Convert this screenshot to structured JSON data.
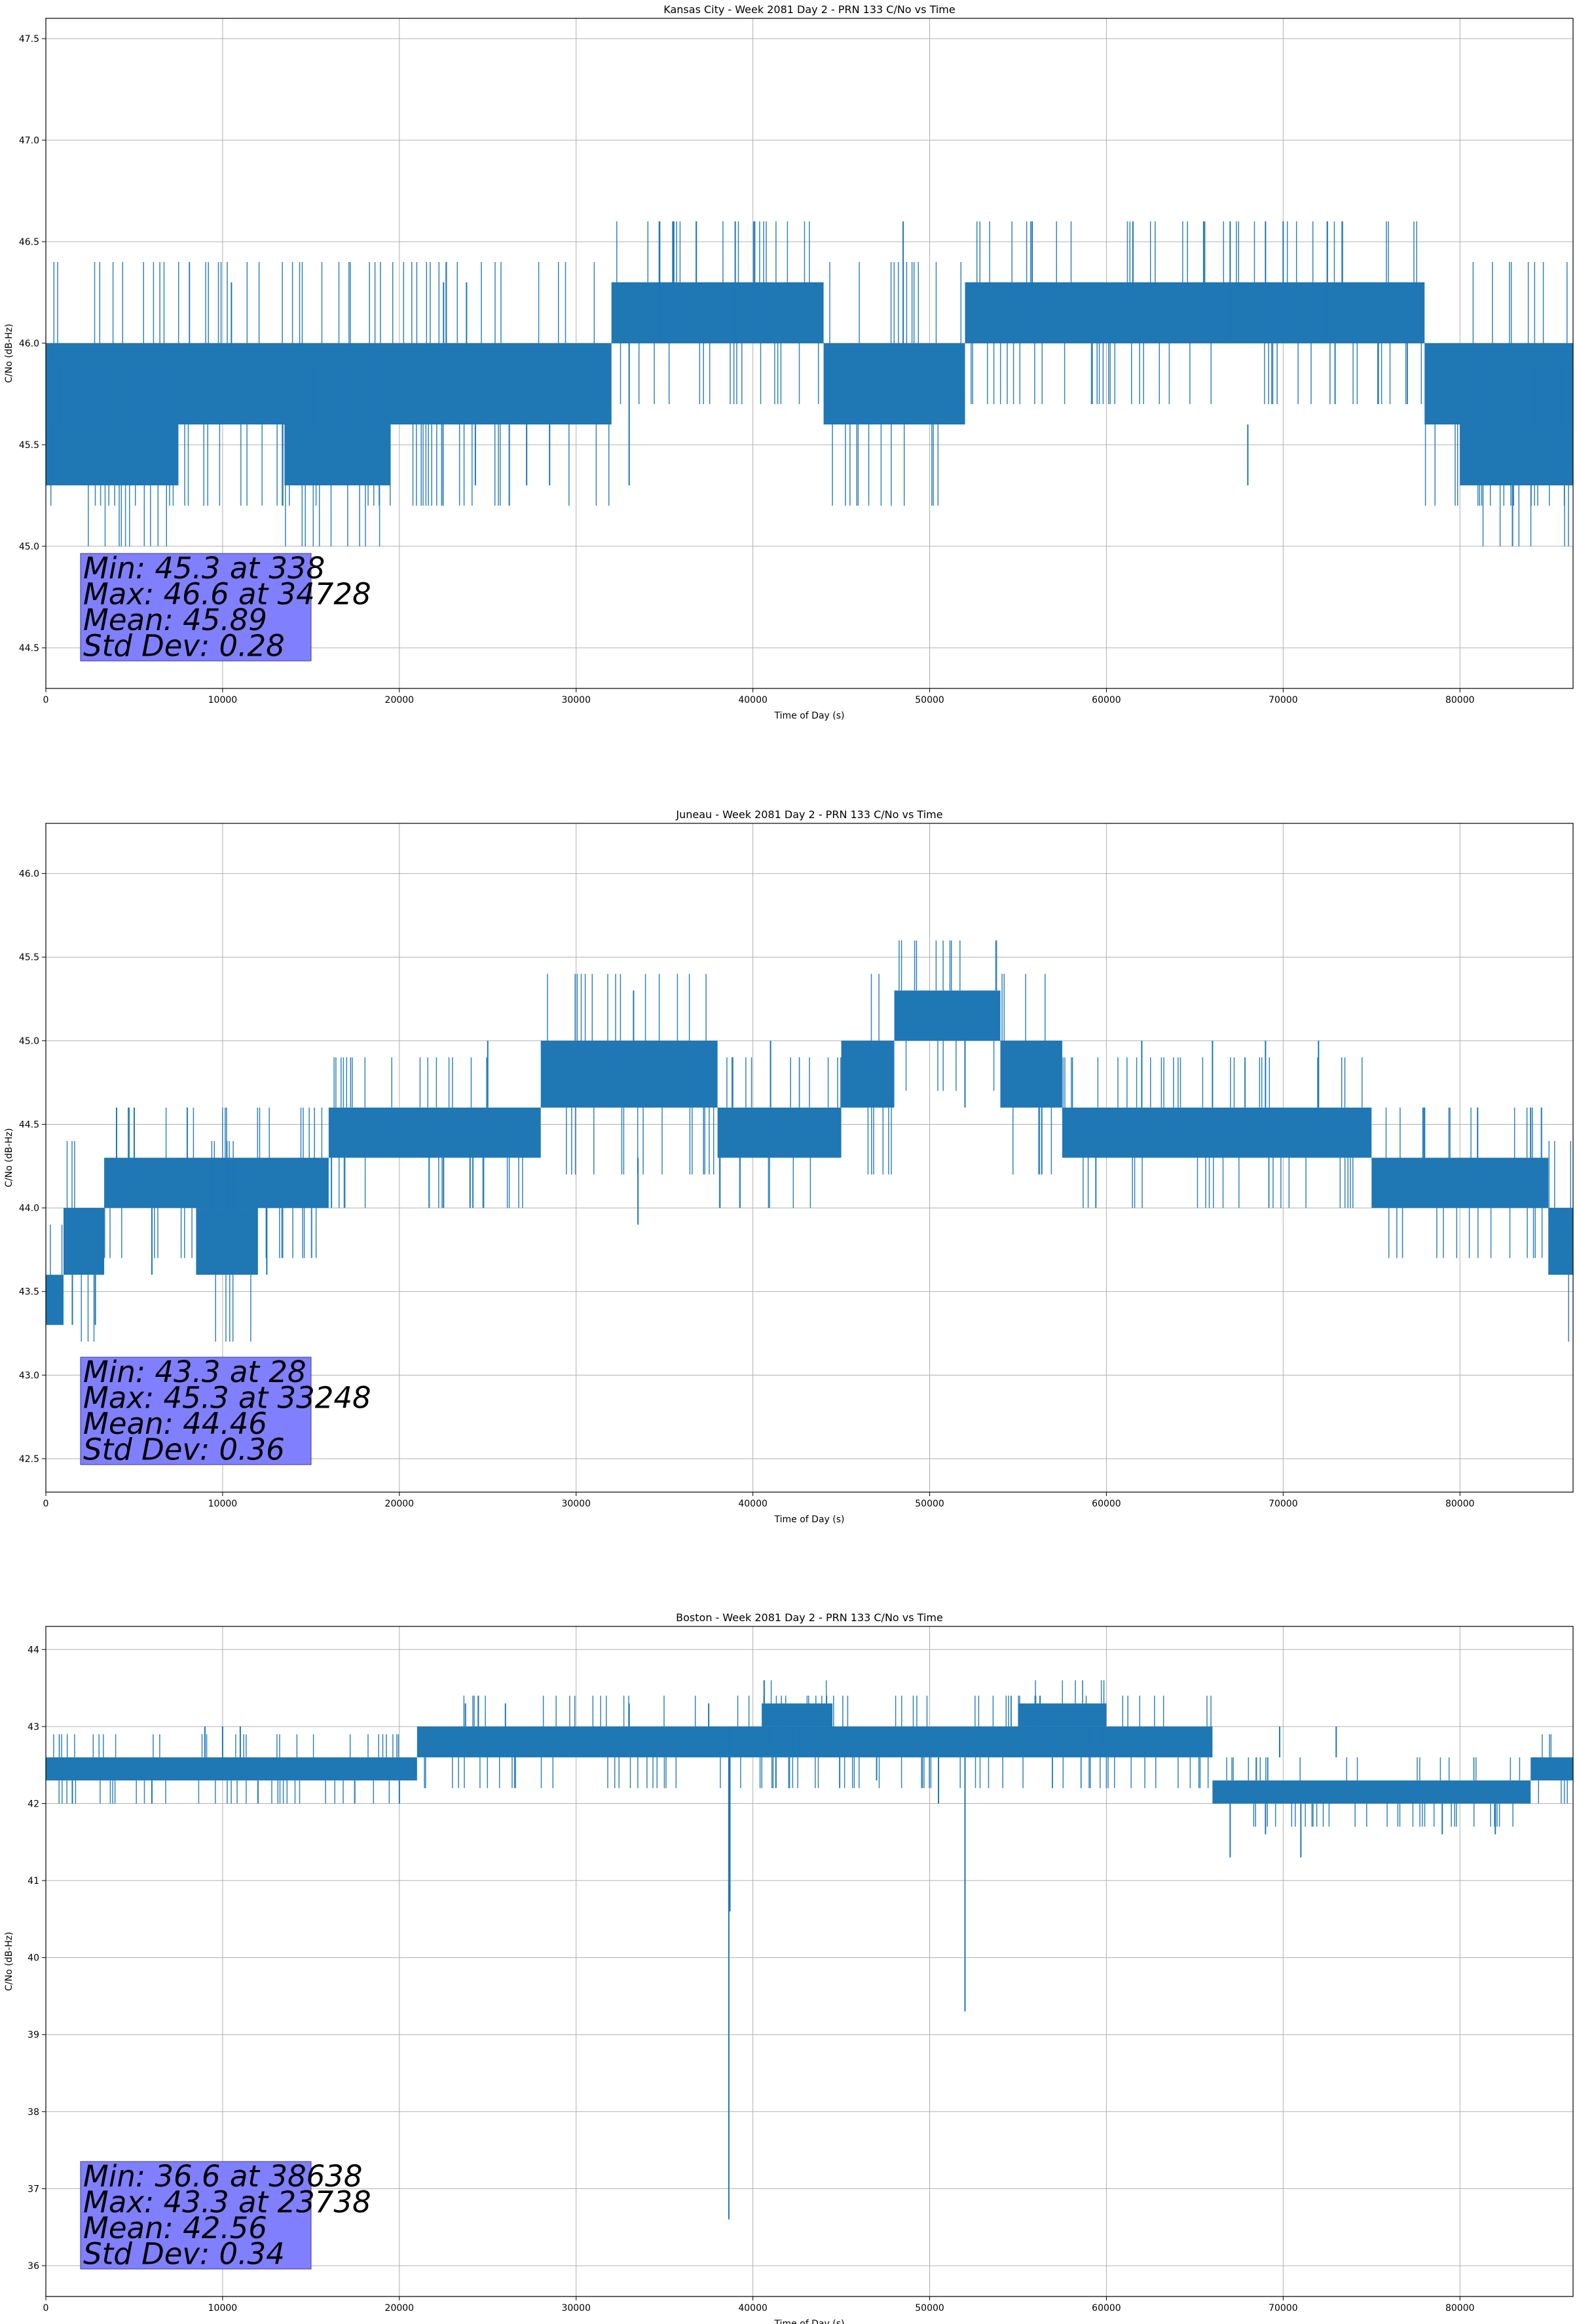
{
  "figure": {
    "series_color": "#1f77b4",
    "stats_box_color": "#8080ff"
  },
  "chart_data": [
    {
      "type": "line",
      "title": "Kansas City - Week 2081 Day 2 - PRN 133 C/No vs Time",
      "xlabel": "Time of Day (s)",
      "ylabel": "C/No (dB-Hz)",
      "xlim": [
        0,
        86400
      ],
      "ylim": [
        44.3,
        47.6
      ],
      "xticks": [
        0,
        10000,
        20000,
        30000,
        40000,
        50000,
        60000,
        70000,
        80000
      ],
      "yticks": [
        44.5,
        45.0,
        45.5,
        46.0,
        46.5,
        47.0,
        47.5
      ],
      "ytick_decimals": 1,
      "grid": true,
      "stats": [
        "Min: 45.3 at 338",
        "Max: 46.6 at 34728",
        "Mean: 45.89",
        "Std Dev: 0.28"
      ],
      "bands": [
        {
          "x0": 0,
          "x1": 32000,
          "lo": 45.6,
          "hi": 46.0
        },
        {
          "x0": 32000,
          "x1": 44000,
          "lo": 46.0,
          "hi": 46.3
        },
        {
          "x0": 44000,
          "x1": 52000,
          "lo": 45.6,
          "hi": 46.0
        },
        {
          "x0": 52000,
          "x1": 78000,
          "lo": 46.0,
          "hi": 46.3
        },
        {
          "x0": 78000,
          "x1": 86400,
          "lo": 45.6,
          "hi": 46.0
        },
        {
          "x0": 0,
          "x1": 7500,
          "lo": 45.3,
          "hi": 45.6
        },
        {
          "x0": 13500,
          "x1": 19500,
          "lo": 45.3,
          "hi": 45.6
        },
        {
          "x0": 80000,
          "x1": 86400,
          "lo": 45.3,
          "hi": 45.6
        }
      ],
      "segments": [
        [
          338,
          45.3,
          46.0
        ],
        [
          10500,
          45.6,
          46.3
        ],
        [
          22500,
          46.0,
          46.3
        ],
        [
          23800,
          46.0,
          46.3
        ],
        [
          34728,
          46.0,
          46.6
        ],
        [
          35500,
          46.0,
          46.6
        ],
        [
          36800,
          46.0,
          46.6
        ],
        [
          39000,
          46.0,
          46.6
        ],
        [
          40100,
          46.0,
          46.6
        ],
        [
          48500,
          46.0,
          46.6
        ],
        [
          55800,
          46.0,
          46.6
        ],
        [
          61500,
          46.0,
          46.6
        ],
        [
          65500,
          46.0,
          46.6
        ],
        [
          67000,
          46.0,
          46.6
        ],
        [
          68000,
          45.3,
          45.6
        ],
        [
          69000,
          46.0,
          46.6
        ],
        [
          70000,
          46.0,
          46.6
        ],
        [
          72500,
          46.0,
          46.6
        ],
        [
          28500,
          45.3,
          45.6
        ],
        [
          33000,
          45.3,
          46.0
        ],
        [
          27200,
          45.3,
          45.6
        ],
        [
          24300,
          45.3,
          45.6
        ]
      ]
    },
    {
      "type": "line",
      "title": "Juneau - Week 2081 Day 2 - PRN 133 C/No vs Time",
      "xlabel": "Time of Day (s)",
      "ylabel": "C/No (dB-Hz)",
      "xlim": [
        0,
        86400
      ],
      "ylim": [
        42.3,
        46.3
      ],
      "xticks": [
        0,
        10000,
        20000,
        30000,
        40000,
        50000,
        60000,
        70000,
        80000
      ],
      "yticks": [
        42.5,
        43.0,
        43.5,
        44.0,
        44.5,
        45.0,
        45.5,
        46.0
      ],
      "ytick_decimals": 1,
      "grid": true,
      "stats": [
        "Min: 43.3 at 28",
        "Max: 45.3 at 33248",
        "Mean: 44.46",
        "Std Dev: 0.36"
      ],
      "bands": [
        {
          "x0": 0,
          "x1": 1000,
          "lo": 43.3,
          "hi": 43.6
        },
        {
          "x0": 1000,
          "x1": 3300,
          "lo": 43.6,
          "hi": 44.0
        },
        {
          "x0": 3300,
          "x1": 16000,
          "lo": 44.0,
          "hi": 44.3
        },
        {
          "x0": 8500,
          "x1": 12000,
          "lo": 43.6,
          "hi": 44.0
        },
        {
          "x0": 16000,
          "x1": 28000,
          "lo": 44.3,
          "hi": 44.6
        },
        {
          "x0": 28000,
          "x1": 38000,
          "lo": 44.6,
          "hi": 45.0
        },
        {
          "x0": 38000,
          "x1": 45000,
          "lo": 44.3,
          "hi": 44.6
        },
        {
          "x0": 45000,
          "x1": 48000,
          "lo": 44.6,
          "hi": 45.0
        },
        {
          "x0": 48000,
          "x1": 54000,
          "lo": 45.0,
          "hi": 45.3
        },
        {
          "x0": 54000,
          "x1": 57500,
          "lo": 44.6,
          "hi": 45.0
        },
        {
          "x0": 57500,
          "x1": 75000,
          "lo": 44.3,
          "hi": 44.6
        },
        {
          "x0": 75000,
          "x1": 85000,
          "lo": 44.0,
          "hi": 44.3
        },
        {
          "x0": 85000,
          "x1": 86400,
          "lo": 43.6,
          "hi": 44.0
        }
      ],
      "segments": [
        [
          300,
          43.3,
          43.6
        ],
        [
          1500,
          43.3,
          43.6
        ],
        [
          2800,
          43.3,
          43.6
        ],
        [
          4000,
          44.3,
          44.6
        ],
        [
          5000,
          44.3,
          44.6
        ],
        [
          6000,
          43.6,
          44.0
        ],
        [
          8000,
          44.3,
          44.6
        ],
        [
          33248,
          45.0,
          45.3
        ],
        [
          25000,
          44.6,
          45.0
        ],
        [
          33500,
          43.9,
          44.3
        ],
        [
          41000,
          44.6,
          45.0
        ],
        [
          52000,
          44.6,
          45.0
        ],
        [
          62000,
          44.6,
          45.0
        ],
        [
          66000,
          44.6,
          45.0
        ],
        [
          69000,
          44.6,
          45.0
        ],
        [
          72000,
          44.6,
          45.0
        ],
        [
          78000,
          44.3,
          44.6
        ],
        [
          81000,
          44.3,
          44.6
        ],
        [
          84000,
          44.3,
          44.6
        ],
        [
          12500,
          43.6,
          44.0
        ],
        [
          22500,
          44.0,
          44.3
        ],
        [
          24000,
          44.0,
          44.3
        ]
      ]
    },
    {
      "type": "line",
      "title": "Boston - Week 2081 Day 2 - PRN 133 C/No vs Time",
      "xlabel": "Time of Day (s)",
      "ylabel": "C/No (dB-Hz)",
      "xlim": [
        0,
        86400
      ],
      "ylim": [
        35.6,
        44.3
      ],
      "xticks": [
        0,
        10000,
        20000,
        30000,
        40000,
        50000,
        60000,
        70000,
        80000
      ],
      "yticks": [
        36,
        37,
        38,
        39,
        40,
        41,
        42,
        43,
        44
      ],
      "ytick_decimals": 0,
      "grid": true,
      "stats": [
        "Min: 36.6 at 38638",
        "Max: 43.3 at 23738",
        "Mean: 42.56",
        "Std Dev: 0.34"
      ],
      "bands": [
        {
          "x0": 0,
          "x1": 21000,
          "lo": 42.3,
          "hi": 42.6
        },
        {
          "x0": 21000,
          "x1": 50000,
          "lo": 42.6,
          "hi": 43.0
        },
        {
          "x0": 50000,
          "x1": 66000,
          "lo": 42.6,
          "hi": 43.0
        },
        {
          "x0": 66000,
          "x1": 84000,
          "lo": 42.0,
          "hi": 42.3
        },
        {
          "x0": 84000,
          "x1": 86400,
          "lo": 42.3,
          "hi": 42.6
        },
        {
          "x0": 40500,
          "x1": 44500,
          "lo": 43.0,
          "hi": 43.3
        },
        {
          "x0": 55000,
          "x1": 60000,
          "lo": 43.0,
          "hi": 43.3
        }
      ],
      "segments": [
        [
          38638,
          36.6,
          43.0
        ],
        [
          38700,
          40.6,
          43.0
        ],
        [
          52000,
          39.3,
          42.6
        ],
        [
          23738,
          43.0,
          43.3
        ],
        [
          26000,
          43.0,
          43.3
        ],
        [
          9000,
          42.6,
          43.0
        ],
        [
          10000,
          42.6,
          43.0
        ],
        [
          11000,
          42.6,
          43.0
        ],
        [
          67000,
          41.3,
          42.0
        ],
        [
          69000,
          41.6,
          42.0
        ],
        [
          71000,
          41.3,
          42.0
        ],
        [
          69800,
          42.6,
          43.0
        ],
        [
          73000,
          42.6,
          43.0
        ],
        [
          1500,
          42.0,
          42.3
        ],
        [
          6000,
          42.0,
          42.3
        ],
        [
          12000,
          42.0,
          42.3
        ],
        [
          20000,
          42.0,
          42.3
        ],
        [
          33000,
          43.0,
          43.3
        ],
        [
          37500,
          43.0,
          43.3
        ],
        [
          47000,
          42.3,
          42.6
        ],
        [
          50500,
          42.0,
          42.6
        ],
        [
          79000,
          41.6,
          42.0
        ],
        [
          82000,
          41.6,
          42.0
        ]
      ]
    }
  ]
}
